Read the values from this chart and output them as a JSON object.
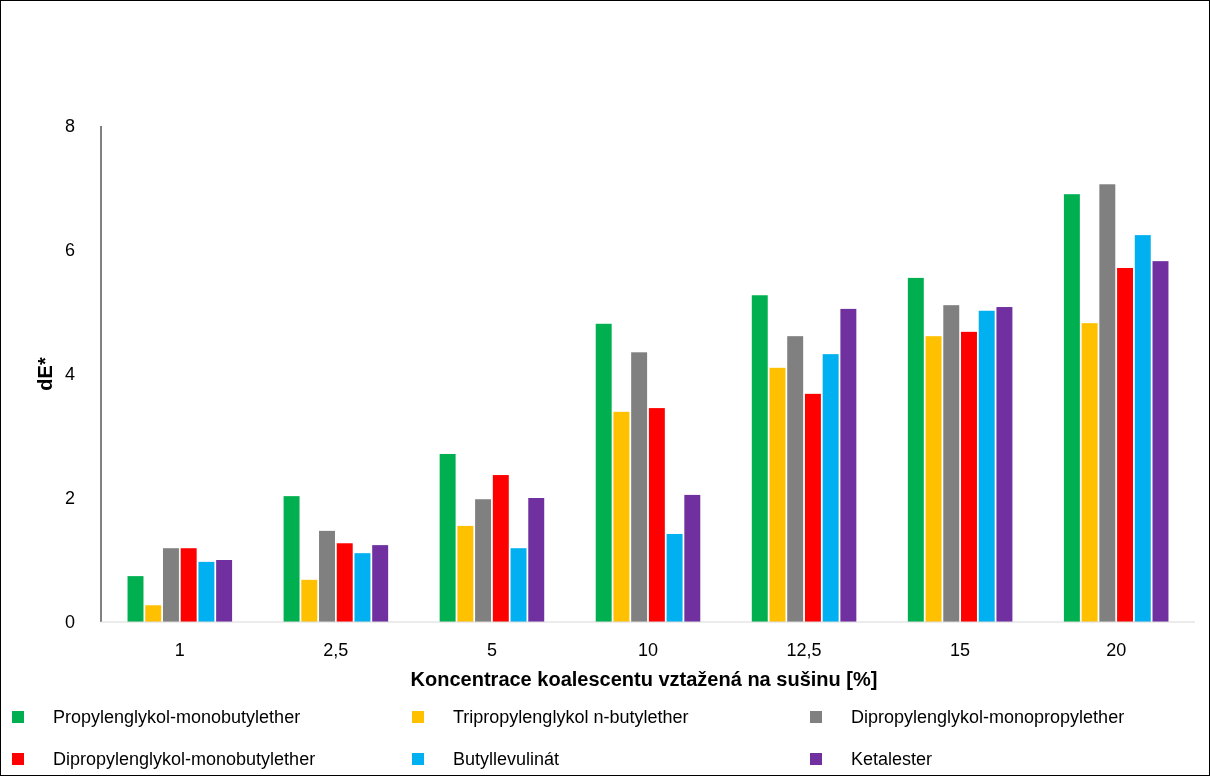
{
  "chart_data": {
    "type": "bar",
    "xlabel": "Koncentrace koalescentu vztažená na sušinu [%]",
    "ylabel": "dE*",
    "categories": [
      "1",
      "2,5",
      "5",
      "10",
      "12,5",
      "15",
      "20"
    ],
    "series": [
      {
        "name": "Propylenglykol-monobutylether",
        "color": "#00b050",
        "values": [
          0.74,
          2.03,
          2.71,
          4.81,
          5.27,
          5.55,
          6.9
        ]
      },
      {
        "name": "Tripropylenglykol n-butylether",
        "color": "#ffc000",
        "values": [
          0.27,
          0.68,
          1.55,
          3.39,
          4.1,
          4.61,
          4.82
        ]
      },
      {
        "name": "Dipropylenglykol-monopropylether",
        "color": "#808080",
        "values": [
          1.19,
          1.47,
          1.98,
          4.35,
          4.61,
          5.11,
          7.06
        ]
      },
      {
        "name": "Dipropylenglykol-monobutylether",
        "color": "#ff0000",
        "values": [
          1.19,
          1.27,
          2.37,
          3.45,
          3.68,
          4.68,
          5.71
        ]
      },
      {
        "name": "Butyllevulinát",
        "color": "#00b0f0",
        "values": [
          0.97,
          1.11,
          1.19,
          1.42,
          4.32,
          5.02,
          6.24
        ]
      },
      {
        "name": "Ketalester",
        "color": "#7030a0",
        "values": [
          1.0,
          1.24,
          2.0,
          2.05,
          5.05,
          5.08,
          5.82
        ]
      }
    ],
    "ylim": [
      0,
      8
    ],
    "yticks": [
      0,
      2,
      4,
      6,
      8
    ],
    "grid": false,
    "legend": "bottom"
  }
}
